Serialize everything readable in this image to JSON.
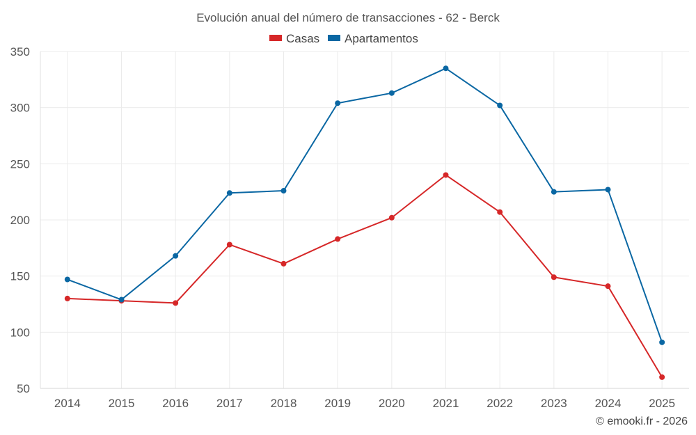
{
  "chart_data": {
    "type": "line",
    "title": "Evolución anual del número de transacciones - 62 - Berck",
    "categories": [
      "2014",
      "2015",
      "2016",
      "2017",
      "2018",
      "2019",
      "2020",
      "2021",
      "2022",
      "2023",
      "2024",
      "2025"
    ],
    "series": [
      {
        "name": "Casas",
        "color": "#d62728",
        "values": [
          130,
          128,
          126,
          178,
          161,
          183,
          202,
          240,
          207,
          149,
          141,
          60
        ]
      },
      {
        "name": "Apartamentos",
        "color": "#0a67a3",
        "values": [
          147,
          129,
          168,
          224,
          226,
          304,
          313,
          335,
          302,
          225,
          227,
          91
        ]
      }
    ],
    "ylim": [
      50,
      350
    ],
    "yticks": [
      50,
      100,
      150,
      200,
      250,
      300,
      350
    ],
    "xlabel": "",
    "ylabel": "",
    "grid": true,
    "legend_position": "top-center"
  },
  "credit": "© emooki.fr - 2026"
}
